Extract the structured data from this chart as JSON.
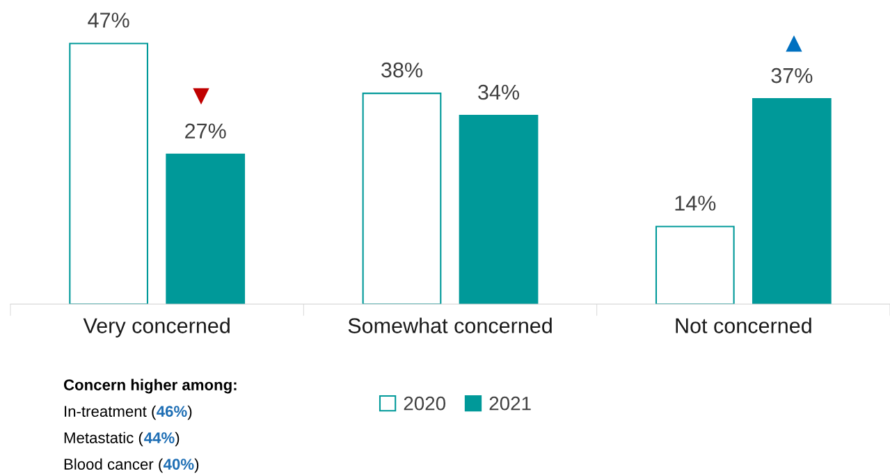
{
  "chart_data": {
    "type": "bar",
    "categories": [
      "Very concerned",
      "Somewhat concerned",
      "Not concerned"
    ],
    "series": [
      {
        "name": "2020",
        "color": "#ffffff",
        "values": [
          47,
          38,
          14
        ],
        "value_labels": [
          "47%",
          "38%",
          "14%"
        ]
      },
      {
        "name": "2021",
        "color": "#009999",
        "values": [
          27,
          34,
          37
        ],
        "value_labels": [
          "27%",
          "34%",
          "37%"
        ]
      }
    ],
    "legend": "bottom",
    "grid": false,
    "annotations": [
      "▼",
      "▲",
      "Concern higher among:",
      "In-treatment (46%)",
      "Metastatic (44%)",
      "Blood cancer (40%)"
    ]
  }
}
